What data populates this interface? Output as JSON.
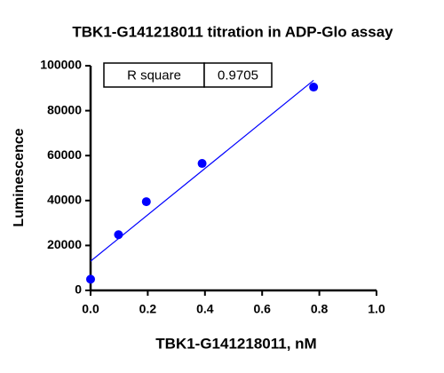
{
  "chart_data": {
    "type": "scatter",
    "title": "TBK1-G141218011 titration in ADP-Glo assay",
    "x_label": "TBK1-G141218011, nM",
    "y_label": "Luminescence",
    "x": [
      0,
      0.0977,
      0.195,
      0.39,
      0.78
    ],
    "values": [
      5000,
      24800,
      39500,
      56500,
      90500
    ],
    "color": "#0000ff",
    "fit_line": {
      "x": [
        0,
        0.78
      ],
      "values": [
        13000,
        93500
      ],
      "color": "#0000ff"
    },
    "annotation_table": [
      [
        "R square",
        "0.9705"
      ]
    ],
    "xlim": [
      0,
      1.0
    ],
    "xticks": [
      {
        "value": 0,
        "label": "0.0"
      },
      0.2,
      0.4,
      0.6,
      0.8,
      {
        "value": 1.0,
        "label": "1.0"
      }
    ],
    "ylim": [
      0,
      100000
    ],
    "yticks": [
      0,
      20000,
      40000,
      60000,
      80000,
      100000
    ],
    "grid": false
  }
}
